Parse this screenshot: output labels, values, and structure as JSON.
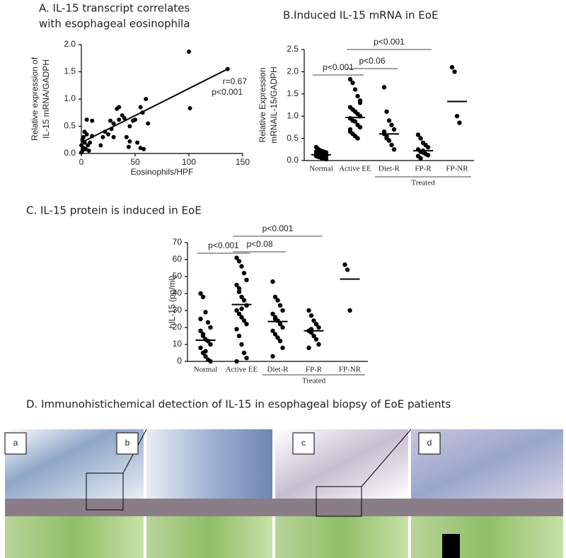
{
  "chart_data": [
    {
      "type": "scatter",
      "title": [
        "A. IL-15 transcript correlates",
        "with esophageal eosinophila"
      ],
      "xlabel": "Eosinophils/HPF",
      "ylabel": [
        "Relative expression of",
        "IL-15 mRNA/GADPH"
      ],
      "annotations": [
        "r=0.67",
        "p<0.001"
      ],
      "x": [
        100,
        101,
        136,
        60,
        57,
        55,
        50,
        48,
        45,
        42,
        40,
        35,
        33,
        30,
        28,
        27,
        25,
        22,
        20,
        18,
        35,
        38,
        52,
        55,
        58,
        62,
        45,
        44,
        30,
        10,
        8,
        5,
        3,
        2,
        1,
        0,
        0,
        2,
        6,
        4,
        7,
        1,
        5,
        10,
        3
      ],
      "values": [
        1.87,
        0.83,
        1.55,
        1.0,
        0.75,
        0.85,
        0.62,
        0.6,
        0.5,
        0.3,
        0.65,
        0.85,
        0.82,
        0.55,
        0.45,
        0.6,
        0.35,
        0.4,
        0.3,
        0.15,
        0.62,
        0.7,
        0.2,
        0.1,
        0.08,
        0.55,
        0.22,
        0.12,
        0.3,
        0.6,
        0.2,
        0.35,
        0.4,
        0.1,
        0.05,
        0.02,
        0.15,
        0.3,
        0.15,
        0.08,
        0.05,
        0.25,
        0.62,
        0.32,
        0.2
      ],
      "trend_line": {
        "x": [
          0,
          136
        ],
        "y": [
          0.2,
          1.55
        ]
      },
      "color": "#000000",
      "xlim": [
        0,
        150
      ],
      "xticks": [
        0,
        50,
        100,
        150
      ],
      "ylim": [
        0,
        2
      ],
      "yticks": [
        {
          "value": 0,
          "label": "0.0"
        },
        {
          "value": 0.5,
          "label": "0.5"
        },
        {
          "value": 1,
          "label": "1.0"
        },
        {
          "value": 1.5,
          "label": "1.5"
        },
        {
          "value": 2,
          "label": "2.0"
        }
      ]
    },
    {
      "type": "strip",
      "title": "B.Induced IL-15 mRNA in EoE",
      "ylabel": [
        "Relative Expression",
        "mRNAIL-15/GADPH"
      ],
      "categories": [
        "Normal",
        "Active EE",
        "Diet-R",
        "FP-R",
        "FP-NR"
      ],
      "values": [
        0.13,
        0.97,
        0.6,
        0.22,
        1.33
      ],
      "points": [
        [
          0.3,
          0.25,
          0.22,
          0.2,
          0.18,
          0.15,
          0.15,
          0.13,
          0.12,
          0.1,
          0.1,
          0.08,
          0.06,
          0.05,
          0.03,
          0.2,
          0.1,
          0.17
        ],
        [
          1.83,
          1.75,
          1.6,
          1.45,
          1.35,
          1.2,
          1.15,
          1.1,
          1.05,
          1.0,
          0.95,
          0.9,
          0.88,
          0.8,
          0.75,
          0.65,
          0.6,
          0.55,
          0.5,
          1.3,
          0.7
        ],
        [
          1.65,
          1.1,
          0.9,
          0.8,
          0.7,
          0.6,
          0.55,
          0.45,
          0.35,
          0.25,
          0.65,
          0.5
        ],
        [
          0.58,
          0.5,
          0.4,
          0.35,
          0.3,
          0.25,
          0.2,
          0.18,
          0.15,
          0.12,
          0.1,
          0.05,
          0.22
        ],
        [
          2.1,
          2.0,
          1.0,
          0.85
        ]
      ],
      "comparisons": [
        {
          "label": "p<0.001",
          "pair": [
            0,
            1
          ]
        },
        {
          "label": "p<0.06",
          "pair": [
            1,
            2
          ]
        },
        {
          "label": "p<0.001",
          "pair": [
            1,
            3
          ]
        }
      ],
      "group": {
        "label": "Treated",
        "from": 2,
        "to": 4
      },
      "color": "#000000",
      "ylim": [
        0,
        2.5
      ],
      "yticks": [
        {
          "value": 0,
          "label": "0.0"
        },
        {
          "value": 0.5,
          "label": "0.5"
        },
        {
          "value": 1,
          "label": "1.0"
        },
        {
          "value": 1.5,
          "label": "1.5"
        },
        {
          "value": 2,
          "label": "2.0"
        },
        {
          "value": 2.5,
          "label": "2.5"
        }
      ]
    },
    {
      "type": "strip",
      "title": "C. IL-15 protein is induced in EoE",
      "ylabel": [
        "hIL-15 (pg/ml)"
      ],
      "categories": [
        "Normal",
        "Active EE",
        "Diet-R",
        "FP-R",
        "FP-NR"
      ],
      "values": [
        12.5,
        33.5,
        23.5,
        18,
        48.5
      ],
      "points": [
        [
          40,
          38,
          29,
          23,
          20,
          18,
          15,
          13,
          12,
          10,
          8,
          5,
          3,
          1,
          0,
          25,
          16,
          6
        ],
        [
          61,
          59,
          56,
          52,
          48,
          45,
          41,
          38,
          36,
          33,
          30,
          28,
          26,
          24,
          22,
          19,
          15,
          10,
          5,
          2,
          0,
          43,
          31
        ],
        [
          47,
          38,
          36,
          33,
          30,
          28,
          26,
          24,
          22,
          20,
          18,
          16,
          14,
          12,
          8,
          3,
          25
        ],
        [
          30,
          27,
          24,
          22,
          20,
          18,
          17,
          15,
          13,
          10,
          8,
          19
        ],
        [
          57,
          54,
          30
        ]
      ],
      "comparisons": [
        {
          "label": "p<0.001",
          "pair": [
            0,
            1
          ]
        },
        {
          "label": "p<0.08",
          "pair": [
            1,
            2
          ]
        },
        {
          "label": "p<0.001",
          "pair": [
            1,
            3
          ]
        }
      ],
      "group": {
        "label": "Treated",
        "from": 2,
        "to": 4
      },
      "color": "#000000",
      "ylim": [
        0,
        70
      ],
      "yticks": [
        0,
        10,
        20,
        30,
        40,
        50,
        60,
        70
      ]
    }
  ],
  "panel_d": {
    "title": "D. Immunohistichemical detection of IL-15 in esophageal biopsy of EoE patients",
    "labels": [
      "a",
      "b",
      "c",
      "d"
    ]
  }
}
